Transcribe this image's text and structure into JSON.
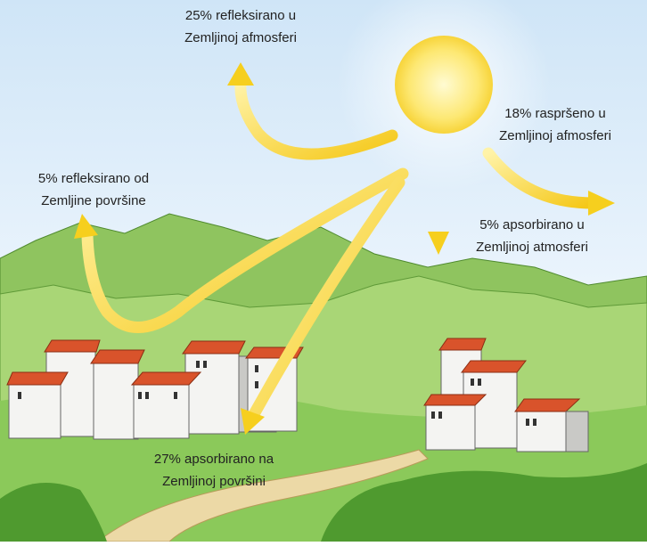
{
  "annotations": [
    {
      "lines": [
        "25% refleksirano u",
        "Zemljinoj afmosferi"
      ]
    },
    {
      "lines": [
        "18% raspršeno u",
        "Zemljinoj afmosferi"
      ]
    },
    {
      "lines": [
        "5% refleksirano od",
        "Zemljine površine"
      ]
    },
    {
      "lines": [
        "5% apsorbirano u",
        "Zemljinoj atmosferi"
      ]
    },
    {
      "lines": [
        "27% apsorbirano na",
        "Zemljinoj površini"
      ]
    }
  ]
}
